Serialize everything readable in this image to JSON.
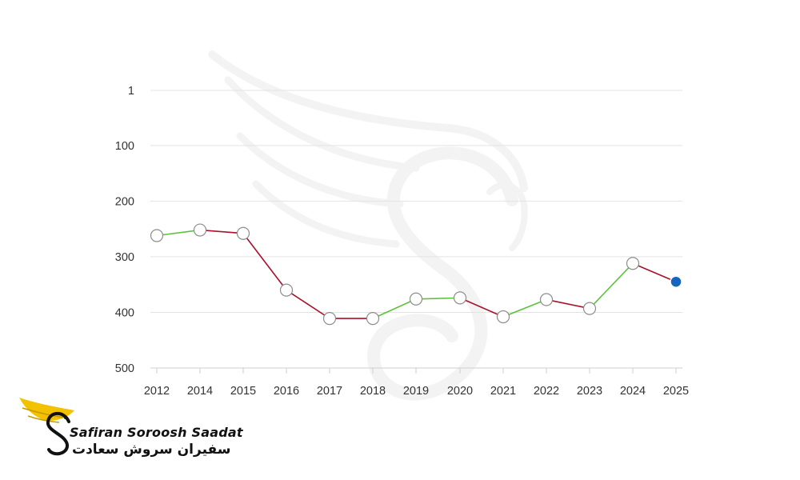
{
  "chart_data": {
    "type": "line",
    "inverted_y": true,
    "categories": [
      "2012",
      "2014",
      "2015",
      "2016",
      "2017",
      "2018",
      "2019",
      "2020",
      "2021",
      "2022",
      "2023",
      "2024",
      "2025"
    ],
    "values": [
      262,
      252,
      258,
      360,
      411,
      411,
      376,
      374,
      408,
      377,
      393,
      312,
      345
    ],
    "yticks": [
      1,
      100,
      200,
      300,
      400,
      500
    ],
    "ylim": [
      1,
      500
    ],
    "grid": true,
    "colors": {
      "up": "#5cc13b",
      "down": "#a8102b",
      "marker_fill": "#ffffff",
      "marker_stroke": "#8c8c8c",
      "latest_marker": "#1565c0",
      "gridline": "#e3e3e3",
      "tick_text": "#333333"
    }
  },
  "logo": {
    "name_latin": "Safiran Soroosh Saadat",
    "name_persian": "سفیران سروش سعادت",
    "colors": {
      "wing": "#f2c200",
      "text": "#111111"
    }
  }
}
